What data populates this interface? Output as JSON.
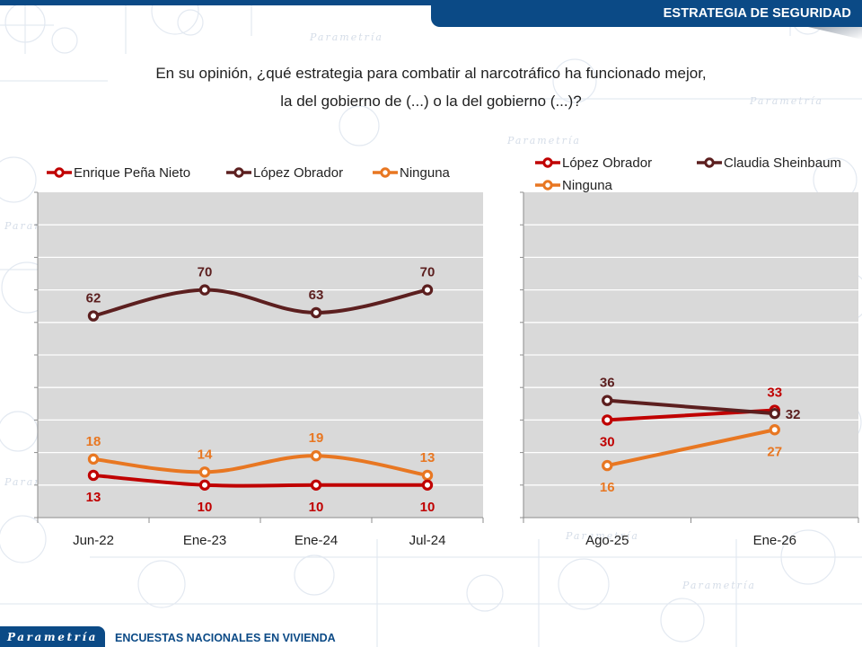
{
  "header": {
    "section_title": "ESTRATEGIA DE SEGURIDAD"
  },
  "question": {
    "line1": "En su opinión, ¿qué estrategia para combatir al narcotráfico ha funcionado mejor,",
    "line2": "la del gobierno de (...) o la del gobierno (...)?"
  },
  "footer": {
    "logo_text": "Parametría",
    "subtitle": "ENCUESTAS NACIONALES EN VIVIENDA"
  },
  "colors": {
    "brand_blue": "#0b4a86",
    "red": "#c00000",
    "dark_brown": "#5c1f1f",
    "orange": "#e87722",
    "plot_bg": "#d9d9d9"
  },
  "chart_data": [
    {
      "type": "line",
      "title": "",
      "xlabel": "",
      "ylabel": "",
      "ylim": [
        0,
        100
      ],
      "grid": true,
      "legend_position": "top",
      "categories": [
        "Jun-22",
        "Ene-23",
        "Ene-24",
        "Jul-24"
      ],
      "series": [
        {
          "name": "Enrique Peña Nieto",
          "color": "#c00000",
          "values": [
            13,
            10,
            10,
            10
          ],
          "label_position": [
            "below",
            "below",
            "below",
            "below"
          ]
        },
        {
          "name": "López Obrador",
          "color": "#5c1f1f",
          "values": [
            62,
            70,
            63,
            70
          ],
          "label_position": [
            "above",
            "above",
            "above",
            "above"
          ]
        },
        {
          "name": "Ninguna",
          "color": "#e87722",
          "values": [
            18,
            14,
            19,
            13
          ],
          "label_position": [
            "above",
            "above",
            "above",
            "above"
          ]
        }
      ]
    },
    {
      "type": "line",
      "title": "",
      "xlabel": "",
      "ylabel": "",
      "ylim": [
        0,
        100
      ],
      "grid": true,
      "legend_position": "top",
      "categories": [
        "Ago-25",
        "Ene-26"
      ],
      "series": [
        {
          "name": "López Obrador",
          "color": "#c00000",
          "values": [
            30,
            33
          ],
          "label_position": [
            "below",
            "above"
          ]
        },
        {
          "name": "Claudia Sheinbaum",
          "color": "#5c1f1f",
          "values": [
            36,
            32
          ],
          "label_position": [
            "above",
            "right"
          ]
        },
        {
          "name": "Ninguna",
          "color": "#e87722",
          "values": [
            16,
            27
          ],
          "label_position": [
            "below",
            "below"
          ]
        }
      ]
    }
  ]
}
